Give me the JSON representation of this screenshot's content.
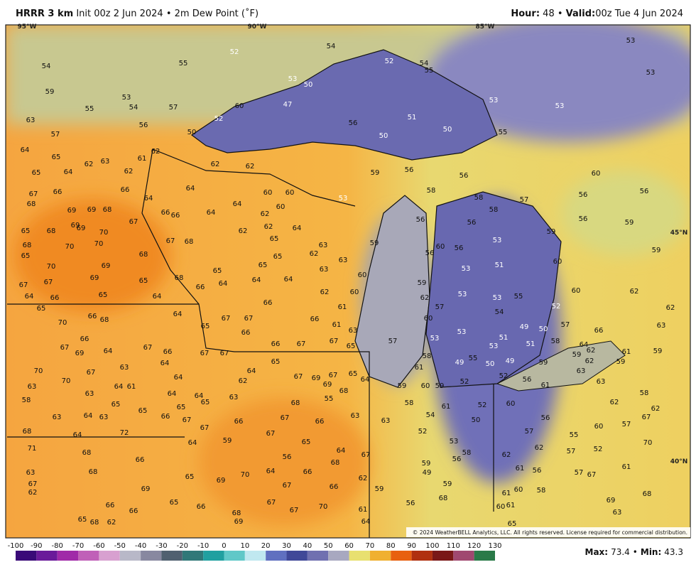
{
  "header": {
    "model": "HRRR 3 km",
    "init": "Init 00z 2 Jun 2024",
    "separator": "•",
    "field": "2m Dew Point (˚F)",
    "hour_label": "Hour:",
    "hour": "48",
    "valid_label": "Valid:",
    "valid": "00z Tue 4 Jun 2024"
  },
  "map": {
    "grid_labels": [
      "95°W",
      "90°W",
      "85°W",
      "45°N",
      "40°N"
    ],
    "points": [
      52,
      55,
      54,
      54,
      52,
      54,
      53,
      53,
      59,
      53,
      54,
      55,
      57,
      53,
      50,
      47,
      52,
      60,
      55,
      53,
      53,
      51,
      50,
      50,
      56,
      63,
      57,
      56,
      50,
      55,
      64,
      65,
      61,
      62,
      62,
      63,
      65,
      64,
      62,
      62,
      62,
      59,
      56,
      56,
      60,
      67,
      66,
      66,
      64,
      64,
      60,
      60,
      53,
      58,
      58,
      57,
      56,
      56,
      68,
      69,
      69,
      68,
      66,
      66,
      64,
      64,
      60,
      62,
      56,
      58,
      56,
      56,
      59,
      65,
      68,
      69,
      69,
      70,
      67,
      62,
      62,
      64,
      59,
      53,
      59,
      68,
      70,
      70,
      68,
      67,
      68,
      65,
      63,
      62,
      60,
      56,
      59,
      65,
      65,
      56,
      53,
      51,
      60,
      70,
      69,
      69,
      65,
      68,
      65,
      64,
      65,
      64,
      63,
      63,
      60,
      59,
      60,
      62,
      67,
      67,
      64,
      66,
      65,
      64,
      66,
      64,
      62,
      60,
      62,
      53,
      53,
      55,
      62,
      65,
      52,
      57,
      54,
      66,
      68,
      64,
      66,
      61,
      70,
      65,
      67,
      67,
      66,
      61,
      60,
      57,
      63,
      66,
      63,
      53,
      49,
      50,
      66,
      66,
      51,
      67,
      69,
      64,
      67,
      66,
      66,
      67,
      67,
      65,
      57,
      53,
      53,
      51,
      58,
      64,
      62,
      59,
      61,
      59,
      70,
      64,
      67,
      67,
      64,
      55,
      49,
      59,
      58,
      62,
      59,
      70,
      67,
      63,
      65,
      49,
      50,
      63,
      67,
      69,
      67,
      65,
      64,
      61,
      52,
      56,
      63,
      63,
      64,
      61,
      62,
      69,
      68,
      52,
      58,
      64,
      59,
      60,
      59,
      61,
      58,
      63,
      64,
      64,
      68,
      55,
      52,
      60,
      62,
      62,
      65,
      65,
      65,
      63,
      58,
      61,
      63,
      64,
      63,
      65,
      66,
      66,
      67,
      66,
      63,
      63,
      54,
      50,
      56,
      57,
      67,
      68,
      64,
      72,
      67,
      67,
      67,
      65,
      52,
      57,
      55,
      60,
      70,
      59,
      53,
      57,
      52,
      62,
      71,
      68,
      64,
      64,
      67,
      68,
      56,
      58,
      56,
      62,
      59,
      61,
      63,
      68,
      66,
      65,
      69,
      70,
      64,
      66,
      62,
      49,
      61,
      56,
      57,
      67,
      67,
      69,
      67,
      66,
      59,
      59,
      58,
      61,
      60,
      68,
      62,
      69,
      66,
      66,
      65,
      66,
      68,
      67,
      67,
      70,
      61,
      68,
      56,
      60,
      61,
      65,
      63,
      65,
      68,
      62,
      69,
      64
    ],
    "copyright": "© 2024 WeatherBELL Analytics, LLC. All rights reserved. License required for commercial distribution."
  },
  "colorbar": {
    "ticks": [
      -100,
      -90,
      -80,
      -70,
      -60,
      -50,
      -40,
      -30,
      -20,
      -10,
      0,
      10,
      20,
      30,
      40,
      50,
      60,
      70,
      80,
      90,
      100,
      110,
      120,
      130
    ],
    "colors": [
      "#3a0a78",
      "#6a1a9a",
      "#a02aa8",
      "#c060b8",
      "#d8a0d0",
      "#b8b8c8",
      "#8888a0",
      "#506070",
      "#307878",
      "#20a0a0",
      "#60c8c8",
      "#c0e8f0",
      "#6070c0",
      "#404898",
      "#7070b0",
      "#a8a8c0",
      "#e8e070",
      "#f0b030",
      "#e86010",
      "#b03010",
      "#7a1818",
      "#a04870",
      "#2a7a48"
    ]
  },
  "footer": {
    "max_label": "Max:",
    "max": 73.4,
    "separator": "•",
    "min_label": "Min:",
    "min": 43.3
  }
}
